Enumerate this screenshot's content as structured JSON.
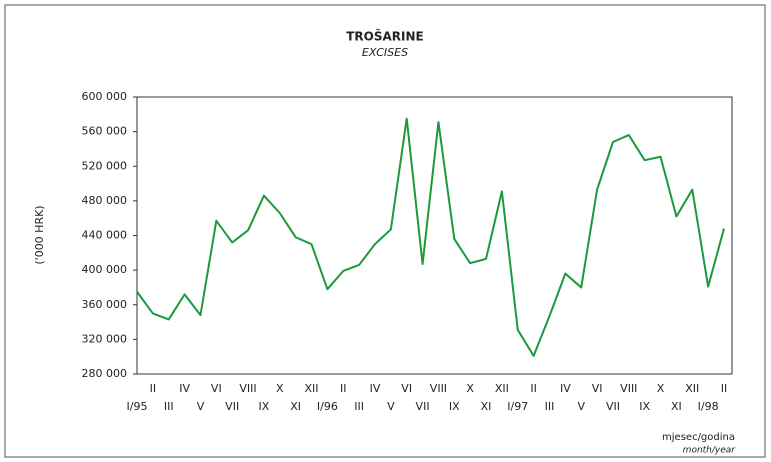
{
  "chart_data": {
    "type": "line",
    "title": "TROŠARINE",
    "subtitle": "EXCISES",
    "y_label": "('000 HRK)",
    "x_label": "mjesec/godina",
    "x_label_en": "month/year",
    "categories": [
      "I/95",
      "II",
      "III",
      "IV",
      "V",
      "VI",
      "VII",
      "VIII",
      "IX",
      "X",
      "XI",
      "XII",
      "I/96",
      "II",
      "III",
      "IV",
      "V",
      "VI",
      "VII",
      "VIII",
      "IX",
      "X",
      "XI",
      "XII",
      "I/97",
      "II",
      "III",
      "IV",
      "V",
      "VI",
      "VII",
      "VIII",
      "IX",
      "X",
      "XI",
      "XII",
      "I/98",
      "II"
    ],
    "series": [
      {
        "name": "Excises",
        "color": "#1a9a3a",
        "values": [
          375000,
          350000,
          343000,
          372000,
          348000,
          457000,
          432000,
          446000,
          486000,
          466000,
          438000,
          430000,
          378000,
          399000,
          406000,
          430000,
          447000,
          575000,
          407000,
          571000,
          436000,
          408000,
          413000,
          491000,
          331000,
          301000,
          347000,
          396000,
          380000,
          493000,
          548000,
          556000,
          527000,
          531000,
          462000,
          493000,
          381000,
          448000
        ]
      }
    ],
    "ylim": [
      280000,
      600000
    ],
    "yticks": [
      {
        "value": 280000,
        "label": "280 000"
      },
      {
        "value": 320000,
        "label": "320 000"
      },
      {
        "value": 360000,
        "label": "360 000"
      },
      {
        "value": 400000,
        "label": "400 000"
      },
      {
        "value": 440000,
        "label": "440 000"
      },
      {
        "value": 480000,
        "label": "480 000"
      },
      {
        "value": 520000,
        "label": "520 000"
      },
      {
        "value": 560000,
        "label": "560 000"
      },
      {
        "value": 600000,
        "label": "600 000"
      }
    ]
  }
}
